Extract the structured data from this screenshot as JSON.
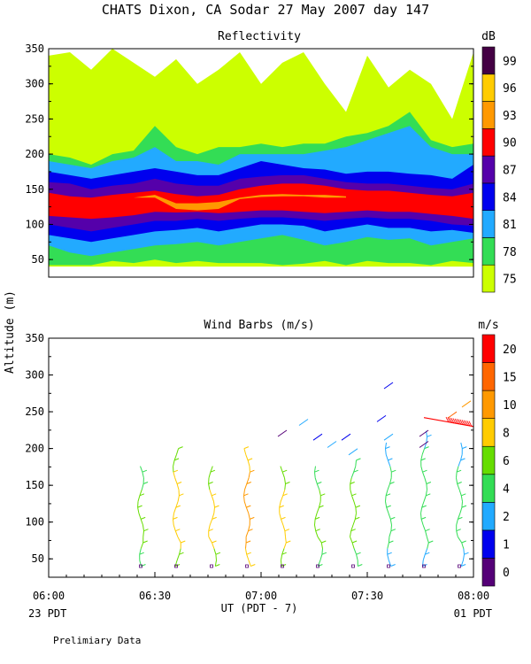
{
  "title": "CHATS Dixon, CA  Sodar  27 May 2007  day 147",
  "ylabel": "Altitude (m)",
  "xlabel": "UT  (PDT - 7)",
  "left_footer": "23 PDT",
  "right_footer": "01 PDT",
  "note": "Prelimiary Data",
  "chart_data": [
    {
      "type": "heatmap",
      "title": "Reflectivity",
      "colorbar_label": "dB",
      "colorbar_ticks": [
        "75",
        "78",
        "81",
        "84",
        "87",
        "90",
        "93",
        "96",
        "99"
      ],
      "colorbar_colors": [
        "#ccff00",
        "#33dd55",
        "#22aaff",
        "#0000ee",
        "#5500aa",
        "#ff0000",
        "#ff9900",
        "#ffcc00",
        "#440044"
      ],
      "y_ticks": [
        "50",
        "100",
        "150",
        "200",
        "250",
        "300",
        "350"
      ],
      "ylim": [
        25,
        350
      ],
      "x_ticks": [
        "06:00",
        "06:30",
        "07:00",
        "07:30",
        "08:00"
      ],
      "xlim": [
        0,
        120
      ],
      "x_times": [
        0,
        6,
        12,
        18,
        24,
        30,
        36,
        42,
        48,
        54,
        60,
        66,
        72,
        78,
        84,
        90,
        96,
        102,
        108,
        114,
        120
      ],
      "layers": [
        {
          "level": 0,
          "top": [
            340,
            345,
            320,
            350,
            330,
            310,
            335,
            300,
            320,
            345,
            300,
            330,
            345,
            300,
            260,
            340,
            295,
            320,
            300,
            250,
            345
          ],
          "bottom": [
            40,
            40,
            40,
            40,
            40,
            40,
            40,
            40,
            40,
            40,
            40,
            40,
            40,
            40,
            40,
            40,
            40,
            40,
            40,
            40,
            40
          ]
        },
        {
          "level": 1,
          "top": [
            200,
            195,
            185,
            200,
            205,
            240,
            210,
            200,
            210,
            210,
            215,
            210,
            215,
            215,
            225,
            230,
            240,
            260,
            220,
            210,
            215
          ],
          "bottom": [
            42,
            42,
            42,
            48,
            45,
            50,
            45,
            48,
            45,
            45,
            45,
            42,
            44,
            48,
            42,
            48,
            45,
            45,
            42,
            48,
            45
          ]
        },
        {
          "level": 2,
          "top": [
            190,
            185,
            180,
            190,
            195,
            210,
            190,
            190,
            185,
            200,
            200,
            200,
            200,
            205,
            210,
            220,
            230,
            240,
            210,
            200,
            200
          ],
          "bottom": [
            70,
            60,
            55,
            60,
            65,
            70,
            72,
            75,
            70,
            75,
            80,
            85,
            78,
            70,
            75,
            82,
            78,
            80,
            70,
            75,
            80
          ]
        },
        {
          "level": 3,
          "top": [
            175,
            170,
            165,
            170,
            175,
            180,
            175,
            170,
            170,
            180,
            190,
            185,
            180,
            178,
            172,
            175,
            175,
            172,
            170,
            165,
            185
          ],
          "bottom": [
            85,
            80,
            75,
            80,
            85,
            90,
            92,
            95,
            90,
            95,
            100,
            100,
            98,
            90,
            95,
            100,
            95,
            95,
            90,
            92,
            88
          ]
        },
        {
          "level": 4,
          "top": [
            160,
            158,
            150,
            155,
            158,
            165,
            158,
            155,
            155,
            165,
            168,
            170,
            170,
            165,
            160,
            158,
            158,
            155,
            152,
            150,
            158
          ],
          "bottom": [
            100,
            95,
            90,
            95,
            100,
            105,
            105,
            108,
            105,
            108,
            110,
            110,
            108,
            105,
            108,
            110,
            108,
            108,
            105,
            100,
            98
          ]
        },
        {
          "level": 5,
          "top": [
            145,
            140,
            138,
            142,
            145,
            148,
            143,
            140,
            142,
            150,
            155,
            158,
            158,
            155,
            150,
            148,
            148,
            145,
            142,
            140,
            145
          ],
          "bottom": [
            112,
            110,
            108,
            110,
            113,
            118,
            117,
            118,
            116,
            118,
            120,
            120,
            118,
            116,
            118,
            120,
            118,
            118,
            115,
            112,
            108
          ]
        },
        {
          "level": 6,
          "top": [
            0,
            0,
            0,
            0,
            138,
            142,
            130,
            130,
            132,
            138,
            142,
            143,
            142,
            142,
            140,
            0,
            0,
            0,
            0,
            0,
            0
          ],
          "bottom": [
            0,
            0,
            0,
            0,
            138,
            138,
            122,
            120,
            122,
            136,
            139,
            140,
            140,
            138,
            138,
            0,
            0,
            0,
            0,
            0,
            0
          ]
        }
      ]
    },
    {
      "type": "wind_barbs",
      "title": "Wind Barbs (m/s)",
      "colorbar_label": "m/s",
      "colorbar_ticks": [
        "0",
        "1",
        "2",
        "4",
        "6",
        "8",
        "10",
        "15",
        "20"
      ],
      "colorbar_colors": [
        "#550077",
        "#0000ee",
        "#22aaff",
        "#33dd55",
        "#66dd00",
        "#ffcc00",
        "#ff9900",
        "#ff6600",
        "#ff0000"
      ],
      "y_ticks": [
        "50",
        "100",
        "150",
        "200",
        "250",
        "300",
        "350"
      ],
      "ylim": [
        25,
        350
      ],
      "x_ticks": [
        "06:00",
        "06:30",
        "07:00",
        "07:30",
        "08:00"
      ],
      "xlim": [
        0,
        120
      ],
      "profile_times": [
        26,
        36,
        46,
        56,
        66,
        76,
        86,
        96,
        106,
        116
      ],
      "profile_tops": [
        180,
        200,
        180,
        200,
        180,
        180,
        190,
        210,
        230,
        210
      ],
      "profile_levels": [
        4,
        5,
        5,
        6,
        5,
        4,
        4,
        3,
        3,
        3
      ],
      "upper_barbs": [
        {
          "t": 66,
          "alt": 220,
          "c": 0
        },
        {
          "t": 72,
          "alt": 235,
          "c": 2
        },
        {
          "t": 76,
          "alt": 215,
          "c": 1
        },
        {
          "t": 80,
          "alt": 205,
          "c": 2
        },
        {
          "t": 84,
          "alt": 215,
          "c": 1
        },
        {
          "t": 86,
          "alt": 195,
          "c": 2
        },
        {
          "t": 94,
          "alt": 240,
          "c": 1
        },
        {
          "t": 96,
          "alt": 285,
          "c": 1
        },
        {
          "t": 96,
          "alt": 215,
          "c": 2
        },
        {
          "t": 106,
          "alt": 220,
          "c": 0
        },
        {
          "t": 106,
          "alt": 205,
          "c": 0
        },
        {
          "t": 114,
          "alt": 245,
          "c": 7
        },
        {
          "t": 118,
          "alt": 260,
          "c": 6
        }
      ]
    }
  ]
}
